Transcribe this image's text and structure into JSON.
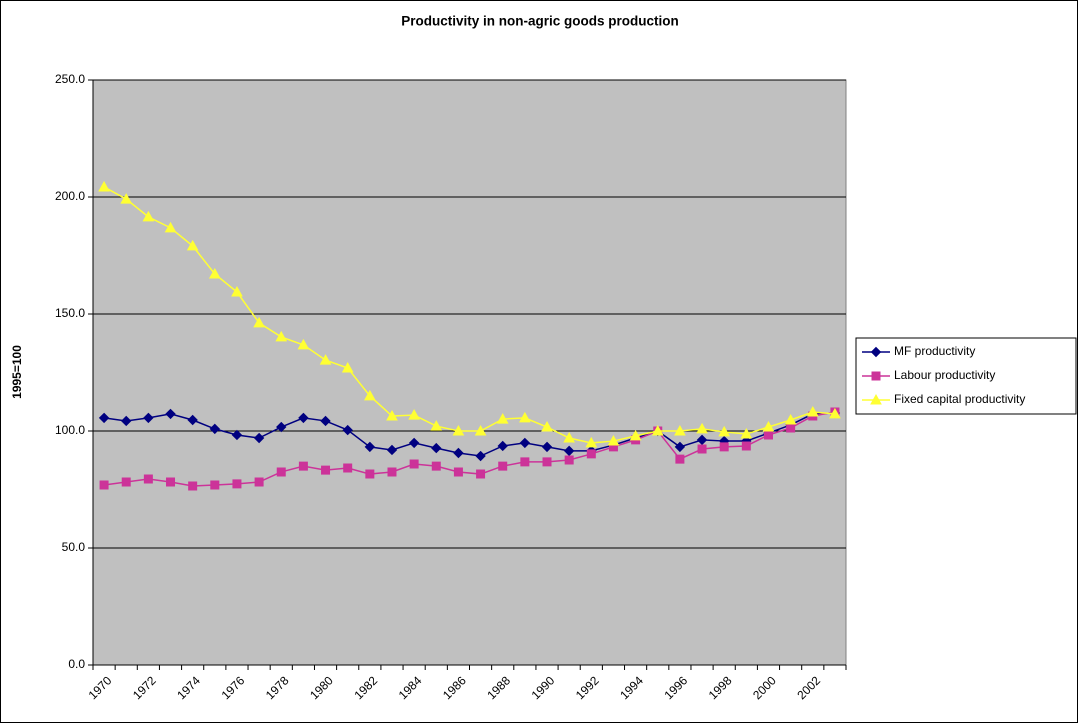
{
  "chart_data": {
    "type": "line",
    "title": "Productivity in non-agric goods production",
    "y_label": "1995=100",
    "categories": [
      "1970",
      null,
      "1972",
      null,
      "1974",
      null,
      "1976",
      null,
      "1978",
      null,
      "1980",
      null,
      "1982",
      null,
      "1984",
      null,
      "1986",
      null,
      "1988",
      null,
      "1990",
      null,
      "1992",
      null,
      "1994",
      null,
      "1996",
      null,
      "1998",
      null,
      "2000",
      null,
      "2002",
      null
    ],
    "series": [
      {
        "name": "MF productivity",
        "color": "#000080",
        "marker": "diamond",
        "values": [
          105.6,
          104.3,
          105.6,
          107.3,
          104.7,
          100.9,
          98.3,
          97.0,
          101.7,
          105.6,
          104.3,
          100.4,
          93.2,
          91.9,
          94.9,
          92.7,
          90.6,
          89.3,
          93.6,
          94.9,
          93.2,
          91.5,
          91.5,
          94.0,
          97.0,
          100.0,
          93.2,
          96.2,
          95.7,
          95.7,
          99.1,
          102.6,
          107.3,
          107.7
        ]
      },
      {
        "name": "Labour productivity",
        "color": "#cc3399",
        "marker": "square",
        "values": [
          76.9,
          78.2,
          79.5,
          78.2,
          76.5,
          76.9,
          77.4,
          78.2,
          82.5,
          85.0,
          83.3,
          84.2,
          81.6,
          82.5,
          85.9,
          85.0,
          82.5,
          81.6,
          85.0,
          86.8,
          86.8,
          87.6,
          90.2,
          93.2,
          96.2,
          100.0,
          88.0,
          92.3,
          93.2,
          93.6,
          98.3,
          101.3,
          106.4,
          108.1
        ]
      },
      {
        "name": "Fixed capital productivity",
        "color": "#ffff33",
        "marker": "triangle",
        "values": [
          204.3,
          199.1,
          191.5,
          186.8,
          179.1,
          167.1,
          159.4,
          146.2,
          140.2,
          136.8,
          130.3,
          126.9,
          115.0,
          106.4,
          106.8,
          102.1,
          100.0,
          100.0,
          105.1,
          105.6,
          101.7,
          97.0,
          94.9,
          95.7,
          97.9,
          100.0,
          100.0,
          100.9,
          99.6,
          98.7,
          101.7,
          104.7,
          108.1,
          107.3
        ]
      }
    ],
    "ylim": [
      0,
      250
    ],
    "yticks": [
      {
        "value": 0,
        "label": "0.0"
      },
      {
        "value": 50,
        "label": "50.0"
      },
      {
        "value": 100,
        "label": "100.0"
      },
      {
        "value": 150,
        "label": "150.0"
      },
      {
        "value": 200,
        "label": "200.0"
      },
      {
        "value": 250,
        "label": "250.0"
      }
    ],
    "grid": true,
    "legend": "right",
    "plot_background": "#c0c0c0"
  }
}
